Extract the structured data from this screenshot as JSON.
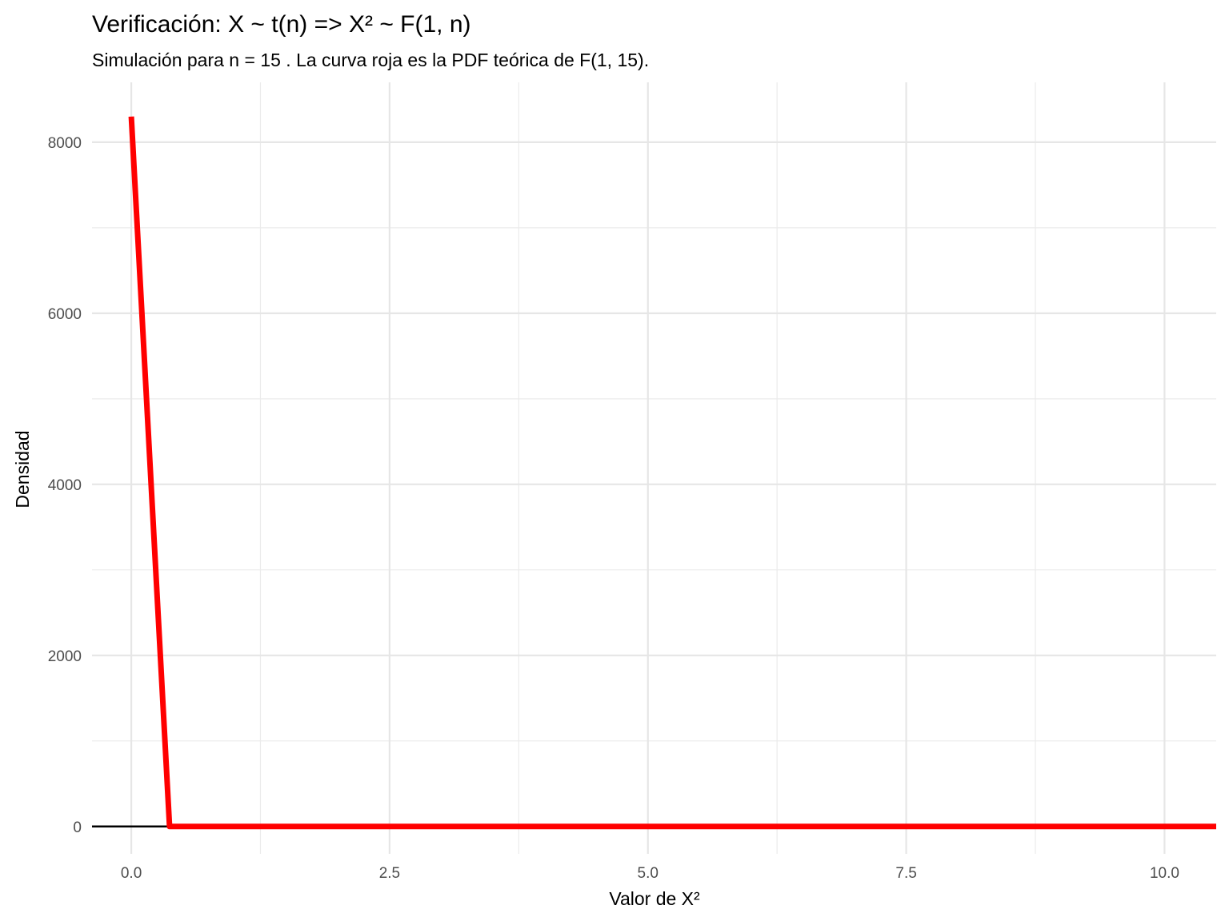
{
  "chart_data": {
    "type": "line",
    "title": "Verificación: X ~ t(n) => X² ~ F(1, n)",
    "subtitle": "Simulación para n = 15 . La curva roja es la PDF teórica de F(1, 15).",
    "xlabel": "Valor de X²",
    "ylabel": "Densidad",
    "xlim": [
      -0.38,
      10.5
    ],
    "ylim": [
      -320,
      8700
    ],
    "x_ticks": [
      0.0,
      2.5,
      5.0,
      7.5,
      10.0
    ],
    "x_tick_labels": [
      "0.0",
      "2.5",
      "5.0",
      "7.5",
      "10.0"
    ],
    "y_ticks": [
      0,
      2000,
      4000,
      6000,
      8000
    ],
    "y_tick_labels": [
      "0",
      "2000",
      "4000",
      "6000",
      "8000"
    ],
    "grid": true,
    "series": [
      {
        "color": "#000000",
        "points": [
          [
            -0.38,
            0
          ],
          [
            0.35,
            0
          ]
        ]
      },
      {
        "color": "#ff0000",
        "points": [
          [
            0.0,
            8300
          ],
          [
            0.37,
            0
          ],
          [
            10.5,
            0
          ]
        ]
      }
    ]
  }
}
